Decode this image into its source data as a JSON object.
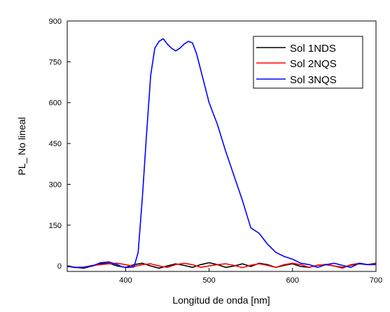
{
  "chart_data": {
    "type": "line",
    "xlabel": "Longitud de onda [nm]",
    "ylabel": "PL_ No lineal",
    "xlim": [
      330,
      700
    ],
    "ylim": [
      -20,
      900
    ],
    "xticks": [
      400,
      500,
      600,
      700
    ],
    "yticks": [
      0,
      150,
      300,
      450,
      600,
      750,
      900
    ],
    "grid": false,
    "legend_position": "top-right",
    "series": [
      {
        "name": "Sol 1NDS",
        "color": "#000000",
        "x": [
          330,
          340,
          350,
          360,
          370,
          380,
          390,
          400,
          410,
          420,
          430,
          440,
          450,
          460,
          470,
          480,
          490,
          500,
          510,
          520,
          530,
          540,
          550,
          560,
          570,
          580,
          590,
          600,
          610,
          620,
          630,
          640,
          650,
          660,
          670,
          680,
          690,
          700
        ],
        "y": [
          0,
          -5,
          -8,
          0,
          8,
          10,
          0,
          -5,
          5,
          10,
          0,
          -8,
          0,
          8,
          2,
          -5,
          5,
          12,
          5,
          -5,
          0,
          8,
          -2,
          10,
          5,
          -5,
          2,
          8,
          -2,
          -5,
          3,
          5,
          0,
          -5,
          3,
          8,
          5,
          10
        ]
      },
      {
        "name": "Sol 2NQS",
        "color": "#ff0000",
        "x": [
          330,
          340,
          350,
          360,
          370,
          380,
          390,
          400,
          410,
          420,
          430,
          440,
          450,
          460,
          470,
          480,
          490,
          500,
          510,
          520,
          530,
          540,
          550,
          560,
          570,
          580,
          590,
          600,
          610,
          620,
          630,
          640,
          650,
          660,
          670,
          680,
          690,
          700
        ],
        "y": [
          0,
          -6,
          -4,
          2,
          5,
          8,
          10,
          5,
          -2,
          5,
          8,
          0,
          -5,
          5,
          10,
          5,
          -5,
          0,
          5,
          8,
          2,
          -6,
          3,
          8,
          2,
          -5,
          5,
          10,
          5,
          -5,
          2,
          6,
          0,
          -8,
          5,
          10,
          5,
          8
        ]
      },
      {
        "name": "Sol 3NQS",
        "color": "#0000ff",
        "x": [
          330,
          340,
          350,
          360,
          370,
          380,
          390,
          395,
          400,
          405,
          410,
          415,
          420,
          425,
          430,
          435,
          440,
          445,
          450,
          455,
          460,
          465,
          470,
          475,
          480,
          485,
          490,
          495,
          500,
          510,
          520,
          530,
          540,
          550,
          560,
          570,
          580,
          590,
          600,
          610,
          620,
          630,
          640,
          650,
          660,
          670,
          680,
          690,
          700
        ],
        "y": [
          -2,
          -5,
          -5,
          0,
          12,
          15,
          5,
          -2,
          -5,
          -5,
          -3,
          50,
          250,
          480,
          700,
          800,
          825,
          835,
          815,
          800,
          790,
          800,
          815,
          825,
          820,
          780,
          720,
          660,
          600,
          520,
          420,
          330,
          240,
          140,
          120,
          80,
          50,
          35,
          25,
          10,
          5,
          -5,
          5,
          10,
          2,
          -5,
          10,
          5,
          5
        ]
      }
    ]
  }
}
